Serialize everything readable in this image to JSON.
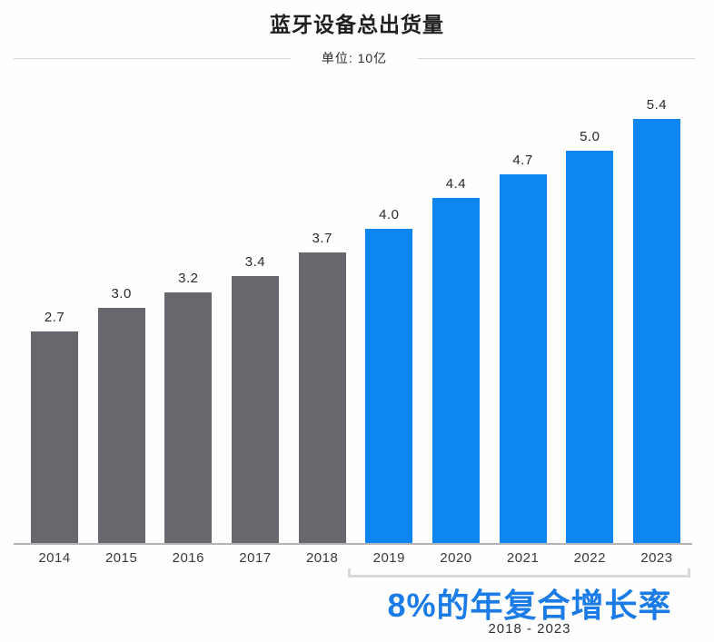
{
  "title": "蓝牙设备总出货量",
  "subtitle": "单位: 10亿",
  "annotation": {
    "cagr_text": "8%的年复合增长率",
    "range_text": "2018 - 2023"
  },
  "colors": {
    "gray_bar": "#67676d",
    "blue_bar": "#0d86f1",
    "accent_text": "#1b7ce8",
    "axis": "#b3b3b3",
    "bracket": "#d8d8d8",
    "title_text": "#1f1f1f",
    "label_text": "#2a2a2a"
  },
  "chart_data": {
    "type": "bar",
    "title": "蓝牙设备总出货量",
    "unit_label": "单位: 10亿",
    "categories": [
      "2014",
      "2015",
      "2016",
      "2017",
      "2018",
      "2019",
      "2020",
      "2021",
      "2022",
      "2023"
    ],
    "values": [
      2.7,
      3.0,
      3.2,
      3.4,
      3.7,
      4.0,
      4.4,
      4.7,
      5.0,
      5.4
    ],
    "value_labels": [
      "2.7",
      "3.0",
      "3.2",
      "3.4",
      "3.7",
      "4.0",
      "4.4",
      "4.7",
      "5.0",
      "5.4"
    ],
    "bar_color_keys": [
      "gray",
      "gray",
      "gray",
      "gray",
      "gray",
      "blue",
      "blue",
      "blue",
      "blue",
      "blue"
    ],
    "ylim": [
      0,
      5.8
    ],
    "grid": false,
    "legend": "none",
    "annotations": [
      {
        "text": "8%的年复合增长率",
        "span": [
          "2019",
          "2023"
        ],
        "range_label": "2018 - 2023"
      }
    ]
  }
}
